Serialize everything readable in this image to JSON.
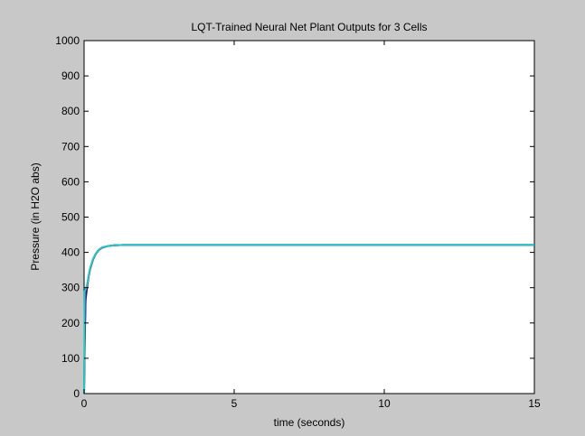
{
  "chart_data": {
    "type": "line",
    "title": "LQT-Trained Neural Net Plant Outputs for 3 Cells",
    "xlabel": "time (seconds)",
    "ylabel": "Pressure (in H2O abs)",
    "xlim": [
      0,
      15
    ],
    "ylim": [
      0,
      1000
    ],
    "xticks": [
      0,
      5,
      10,
      15
    ],
    "yticks": [
      0,
      100,
      200,
      300,
      400,
      500,
      600,
      700,
      800,
      900,
      1000
    ],
    "grid": false,
    "legend": "none",
    "series": [
      {
        "color": "#cc0033",
        "x": [
          0,
          0.02,
          0.05,
          0.1,
          0.15,
          0.2,
          0.3,
          0.4,
          0.5,
          0.6,
          0.8,
          1.0,
          1.3,
          2,
          5,
          10,
          15
        ],
        "y": [
          0,
          150,
          265,
          300,
          330,
          352,
          380,
          397,
          407,
          413,
          418,
          420,
          421,
          421,
          421,
          421,
          421
        ]
      },
      {
        "color": "#1a1a99",
        "x": [
          0,
          0.02,
          0.05,
          0.1,
          0.15,
          0.2,
          0.3,
          0.4,
          0.5,
          0.6,
          0.8,
          1.0,
          1.3,
          2,
          5,
          10,
          15
        ],
        "y": [
          0,
          140,
          275,
          305,
          333,
          354,
          381,
          398,
          408,
          414,
          418,
          420,
          421,
          421,
          421,
          421,
          421
        ]
      },
      {
        "color": "#22c8c8",
        "x": [
          0,
          0.02,
          0.05,
          0.1,
          0.15,
          0.2,
          0.3,
          0.4,
          0.5,
          0.6,
          0.8,
          1.0,
          1.3,
          2,
          5,
          10,
          15
        ],
        "y": [
          0,
          290,
          295,
          308,
          334,
          355,
          382,
          398,
          408,
          414,
          418,
          420,
          421,
          421,
          421,
          421,
          421
        ]
      }
    ]
  }
}
